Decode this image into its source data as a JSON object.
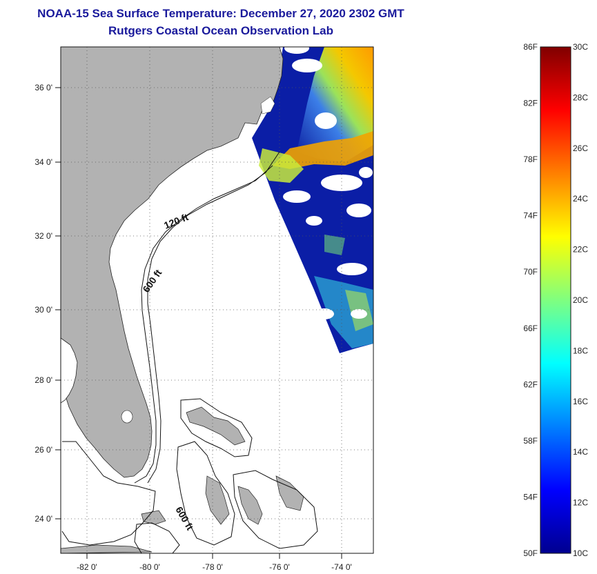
{
  "header": {
    "title": "NOAA-15 Sea Surface Temperature:  December 27, 2020 2302 GMT",
    "subtitle": "Rutgers Coastal Ocean Observation Lab"
  },
  "map": {
    "lon_range": [
      -83.0,
      -73.0
    ],
    "lat_range": [
      23.0,
      37.0
    ],
    "lon_ticks": [
      {
        "value": -82,
        "label": "-82 0'"
      },
      {
        "value": -80,
        "label": "-80 0'"
      },
      {
        "value": -78,
        "label": "-78 0'"
      },
      {
        "value": -76,
        "label": "-76 0'"
      },
      {
        "value": -74,
        "label": "-74 0'"
      }
    ],
    "lat_ticks": [
      {
        "value": 36,
        "label": "36 0'"
      },
      {
        "value": 34,
        "label": "34 0'"
      },
      {
        "value": 32,
        "label": "32 0'"
      },
      {
        "value": 30,
        "label": "30 0'"
      },
      {
        "value": 28,
        "label": "28 0'"
      },
      {
        "value": 26,
        "label": "26 0'"
      },
      {
        "value": 24,
        "label": "24 0'"
      }
    ],
    "contour_labels": [
      "120 ft",
      "600 ft",
      "600 ft"
    ],
    "grid": "dotted",
    "land_color": "#b2b2b2"
  },
  "colorbar": {
    "min_c": 10,
    "max_c": 30,
    "fahrenheit_labels": [
      "86F",
      "82F",
      "78F",
      "74F",
      "70F",
      "66F",
      "62F",
      "58F",
      "54F",
      "50F"
    ],
    "celsius_labels": [
      "30C",
      "28C",
      "26C",
      "24C",
      "22C",
      "20C",
      "18C",
      "16C",
      "14C",
      "12C",
      "10C"
    ],
    "palette": "jet"
  }
}
